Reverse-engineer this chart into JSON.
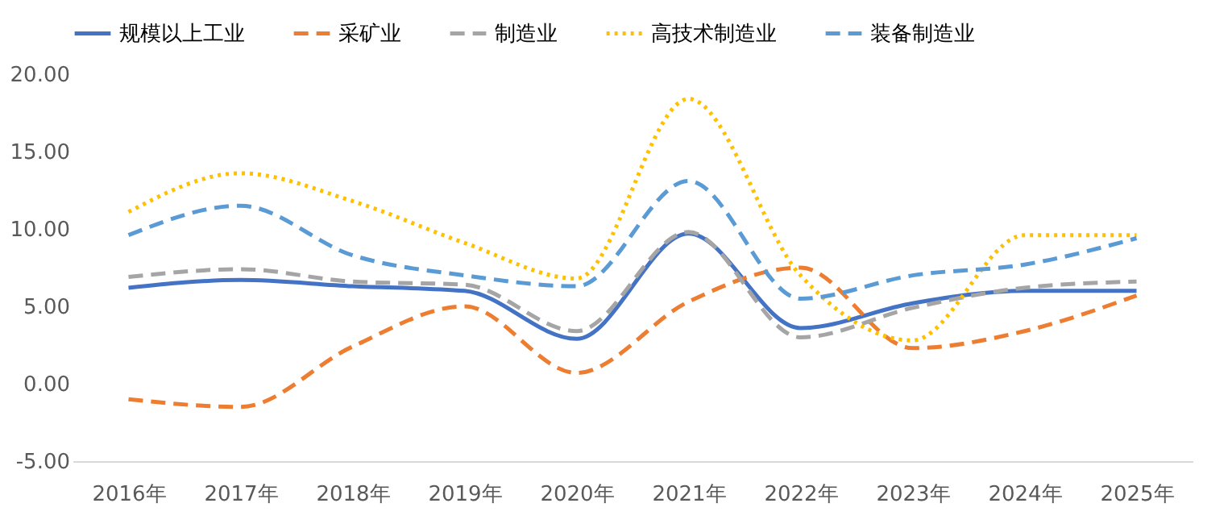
{
  "chart_data": {
    "type": "line",
    "categories": [
      "2016年",
      "2017年",
      "2018年",
      "2019年",
      "2020年",
      "2021年",
      "2022年",
      "2023年",
      "2024年",
      "2025年"
    ],
    "series": [
      {
        "name": "规模以上工业",
        "color": "#4472c4",
        "line_style": "solid",
        "values": [
          6.2,
          6.7,
          6.3,
          6.0,
          2.9,
          9.7,
          3.6,
          5.2,
          6.0,
          6.0
        ]
      },
      {
        "name": "采矿业",
        "color": "#ed7d31",
        "line_style": "dashed",
        "values": [
          -1.0,
          -1.5,
          2.4,
          5.0,
          0.7,
          5.3,
          7.5,
          2.3,
          3.4,
          5.7
        ]
      },
      {
        "name": "制造业",
        "color": "#a5a5a5",
        "line_style": "dashed",
        "values": [
          6.9,
          7.4,
          6.6,
          6.4,
          3.4,
          9.8,
          3.0,
          4.9,
          6.2,
          6.6
        ]
      },
      {
        "name": "高技术制造业",
        "color": "#ffc000",
        "line_style": "dotted",
        "values": [
          11.1,
          13.6,
          11.8,
          9.1,
          6.8,
          18.4,
          7.0,
          2.8,
          9.6,
          9.6
        ]
      },
      {
        "name": "装备制造业",
        "color": "#5b9bd5",
        "line_style": "dashed",
        "values": [
          9.6,
          11.5,
          8.3,
          7.0,
          6.3,
          13.1,
          5.5,
          7.0,
          7.7,
          9.4
        ]
      }
    ],
    "ylim": [
      -5,
      20
    ],
    "yticks": [
      {
        "value": -5,
        "label": "-5.00"
      },
      {
        "value": 0,
        "label": "0.00"
      },
      {
        "value": 5,
        "label": "5.00"
      },
      {
        "value": 10,
        "label": "10.00"
      },
      {
        "value": 15,
        "label": "15.00"
      },
      {
        "value": 20,
        "label": "20.00"
      }
    ],
    "grid": false,
    "legend": "top"
  }
}
